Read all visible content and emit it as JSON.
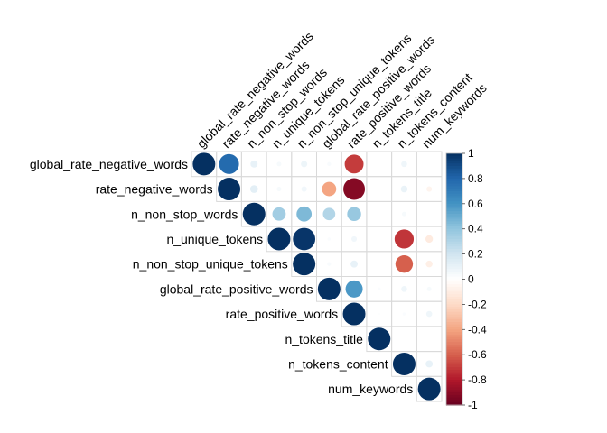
{
  "chart_data": {
    "type": "heatmap",
    "style": "upper-triangle correlation plot, circle size and color = correlation",
    "variables": [
      "global_rate_negative_words",
      "rate_negative_words",
      "n_non_stop_words",
      "n_unique_tokens",
      "n_non_stop_unique_tokens",
      "global_rate_positive_words",
      "rate_positive_words",
      "n_tokens_title",
      "n_tokens_content",
      "num_keywords"
    ],
    "matrix": [
      [
        1.0,
        0.78,
        0.1,
        0.04,
        0.08,
        0.03,
        -0.7,
        0.0,
        0.07,
        0.0
      ],
      [
        0.78,
        1.0,
        0.12,
        0.04,
        0.06,
        -0.4,
        -0.92,
        0.0,
        0.09,
        -0.06
      ],
      [
        0.1,
        0.12,
        1.0,
        0.35,
        0.45,
        0.3,
        0.38,
        0.0,
        0.04,
        0.0
      ],
      [
        0.04,
        0.04,
        0.35,
        1.0,
        0.98,
        0.02,
        0.06,
        0.0,
        -0.72,
        -0.11
      ],
      [
        0.08,
        0.06,
        0.45,
        0.98,
        1.0,
        0.03,
        0.1,
        0.0,
        -0.6,
        -0.09
      ],
      [
        0.03,
        -0.4,
        0.3,
        0.02,
        0.03,
        1.0,
        0.58,
        0.02,
        0.07,
        0.04
      ],
      [
        -0.7,
        -0.92,
        0.38,
        0.06,
        0.1,
        0.58,
        1.0,
        0.01,
        0.02,
        0.07
      ],
      [
        0.0,
        0.0,
        0.0,
        0.0,
        0.0,
        0.02,
        0.01,
        1.0,
        0.0,
        0.0
      ],
      [
        0.07,
        0.09,
        0.04,
        -0.72,
        -0.6,
        0.07,
        0.02,
        0.0,
        1.0,
        0.1
      ],
      [
        0.0,
        -0.06,
        0.0,
        -0.11,
        -0.09,
        0.04,
        0.07,
        0.0,
        0.1,
        1.0
      ]
    ],
    "colorbar": {
      "ticks": [
        "1",
        "0.8",
        "0.6",
        "0.4",
        "0.2",
        "0",
        "-0.2",
        "-0.4",
        "-0.6",
        "-0.8",
        "-1"
      ],
      "range": [
        -1,
        1
      ],
      "palette_stops": [
        {
          "v": -1.0,
          "c": "#67001F"
        },
        {
          "v": -0.8,
          "c": "#B2182B"
        },
        {
          "v": -0.6,
          "c": "#D6604D"
        },
        {
          "v": -0.4,
          "c": "#F4A582"
        },
        {
          "v": -0.2,
          "c": "#FDDBC7"
        },
        {
          "v": 0.0,
          "c": "#FFFFFF"
        },
        {
          "v": 0.2,
          "c": "#D1E5F0"
        },
        {
          "v": 0.4,
          "c": "#92C5DE"
        },
        {
          "v": 0.6,
          "c": "#4393C3"
        },
        {
          "v": 0.8,
          "c": "#2166AC"
        },
        {
          "v": 1.0,
          "c": "#053061"
        }
      ]
    },
    "grid": true,
    "legend": "right"
  }
}
